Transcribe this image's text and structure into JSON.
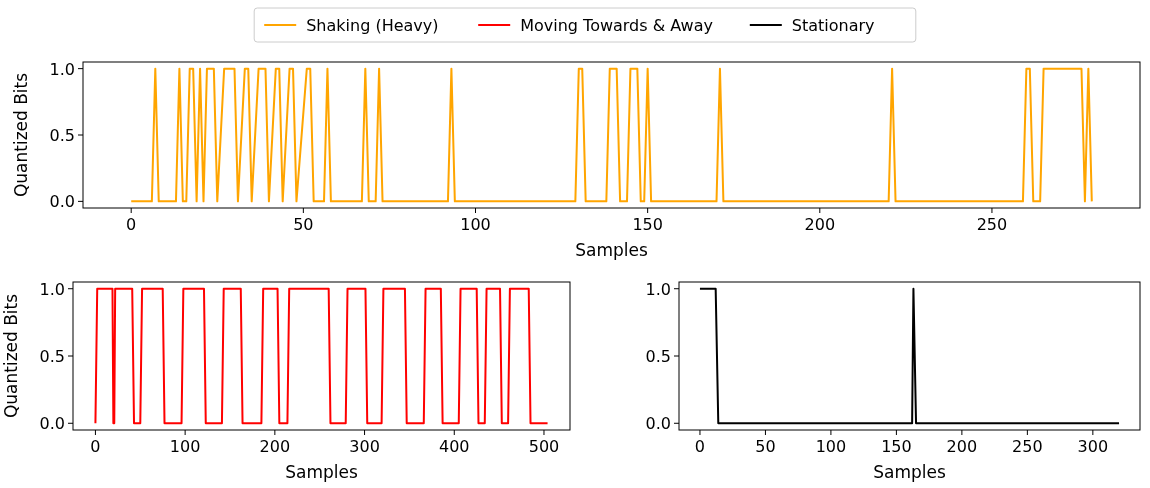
{
  "chart_data": [
    {
      "type": "line",
      "xlabel": "Samples",
      "ylabel": "Quantized Bits",
      "xlim": [
        -14,
        293
      ],
      "ylim": [
        -0.05,
        1.05
      ],
      "xticks": [
        0,
        50,
        100,
        150,
        200,
        250
      ],
      "yticks": [
        {
          "value": 0,
          "label": "0.0"
        },
        {
          "value": 0.5,
          "label": "0.5"
        },
        {
          "value": 1,
          "label": "1.0"
        }
      ],
      "legend": "top",
      "grid": false,
      "series": [
        {
          "name": "Shaking (Heavy)",
          "color": "#ffa500",
          "x": [
            0,
            6,
            7,
            8,
            13,
            14,
            15,
            16,
            17,
            18,
            19,
            20,
            21,
            22,
            24,
            25,
            27,
            30,
            31,
            33,
            34,
            35,
            37,
            39,
            40,
            42,
            43,
            44,
            46,
            47,
            48,
            51,
            52,
            53,
            56,
            57,
            58,
            67,
            68,
            69,
            71,
            72,
            73,
            92,
            93,
            94,
            129,
            130,
            131,
            132,
            138,
            139,
            141,
            142,
            144,
            145,
            147,
            148,
            149,
            150,
            151,
            170,
            171,
            172,
            220,
            221,
            222,
            259,
            260,
            261,
            262,
            264,
            265,
            276,
            277,
            278,
            279
          ],
          "values": [
            0,
            0,
            1,
            0,
            0,
            1,
            0,
            0,
            1,
            1,
            0,
            1,
            0,
            1,
            1,
            0,
            1,
            1,
            0,
            1,
            1,
            0,
            1,
            1,
            0,
            1,
            1,
            0,
            1,
            1,
            0,
            1,
            1,
            0,
            0,
            1,
            0,
            0,
            1,
            0,
            0,
            1,
            0,
            0,
            1,
            0,
            0,
            1,
            1,
            0,
            0,
            1,
            1,
            0,
            0,
            1,
            1,
            0,
            0,
            1,
            0,
            0,
            1,
            0,
            0,
            1,
            0,
            0,
            1,
            1,
            0,
            0,
            1,
            1,
            0,
            1,
            0
          ]
        }
      ]
    },
    {
      "type": "line",
      "xlabel": "Samples",
      "ylabel": "Quantized Bits",
      "xlim": [
        -25,
        529
      ],
      "ylim": [
        -0.05,
        1.05
      ],
      "xticks": [
        0,
        100,
        200,
        300,
        400,
        500
      ],
      "yticks": [
        {
          "value": 0,
          "label": "0.0"
        },
        {
          "value": 0.5,
          "label": "0.5"
        },
        {
          "value": 1,
          "label": "1.0"
        }
      ],
      "legend": "top",
      "grid": false,
      "series": [
        {
          "name": "Moving Towards & Away",
          "color": "#ff0000",
          "x": [
            0,
            2,
            19,
            20,
            21,
            22,
            41,
            43,
            50,
            52,
            75,
            77,
            96,
            98,
            121,
            123,
            141,
            143,
            162,
            164,
            185,
            187,
            203,
            205,
            214,
            216,
            260,
            262,
            279,
            281,
            301,
            303,
            319,
            321,
            345,
            347,
            366,
            368,
            385,
            387,
            405,
            407,
            425,
            427,
            434,
            436,
            451,
            453,
            460,
            462,
            483,
            485,
            504
          ],
          "values": [
            0,
            1,
            1,
            0,
            0,
            1,
            1,
            0,
            0,
            1,
            1,
            0,
            0,
            1,
            1,
            0,
            0,
            1,
            1,
            0,
            0,
            1,
            1,
            0,
            0,
            1,
            1,
            0,
            0,
            1,
            1,
            0,
            0,
            1,
            1,
            0,
            0,
            1,
            1,
            0,
            0,
            1,
            1,
            0,
            0,
            1,
            1,
            0,
            0,
            1,
            1,
            0,
            0
          ]
        }
      ]
    },
    {
      "type": "line",
      "xlabel": "Samples",
      "xlim": [
        -16,
        336
      ],
      "ylim": [
        -0.05,
        1.05
      ],
      "xticks": [
        0,
        50,
        100,
        150,
        200,
        250,
        300
      ],
      "yticks": [
        {
          "value": 0,
          "label": "0.0"
        },
        {
          "value": 0.5,
          "label": "0.5"
        },
        {
          "value": 1,
          "label": "1.0"
        }
      ],
      "legend": "top",
      "grid": false,
      "series": [
        {
          "name": "Stationary",
          "color": "#000000",
          "x": [
            0,
            12,
            14,
            162,
            163,
            165,
            320
          ],
          "values": [
            1,
            1,
            0,
            0,
            1,
            0,
            0
          ]
        }
      ]
    }
  ]
}
